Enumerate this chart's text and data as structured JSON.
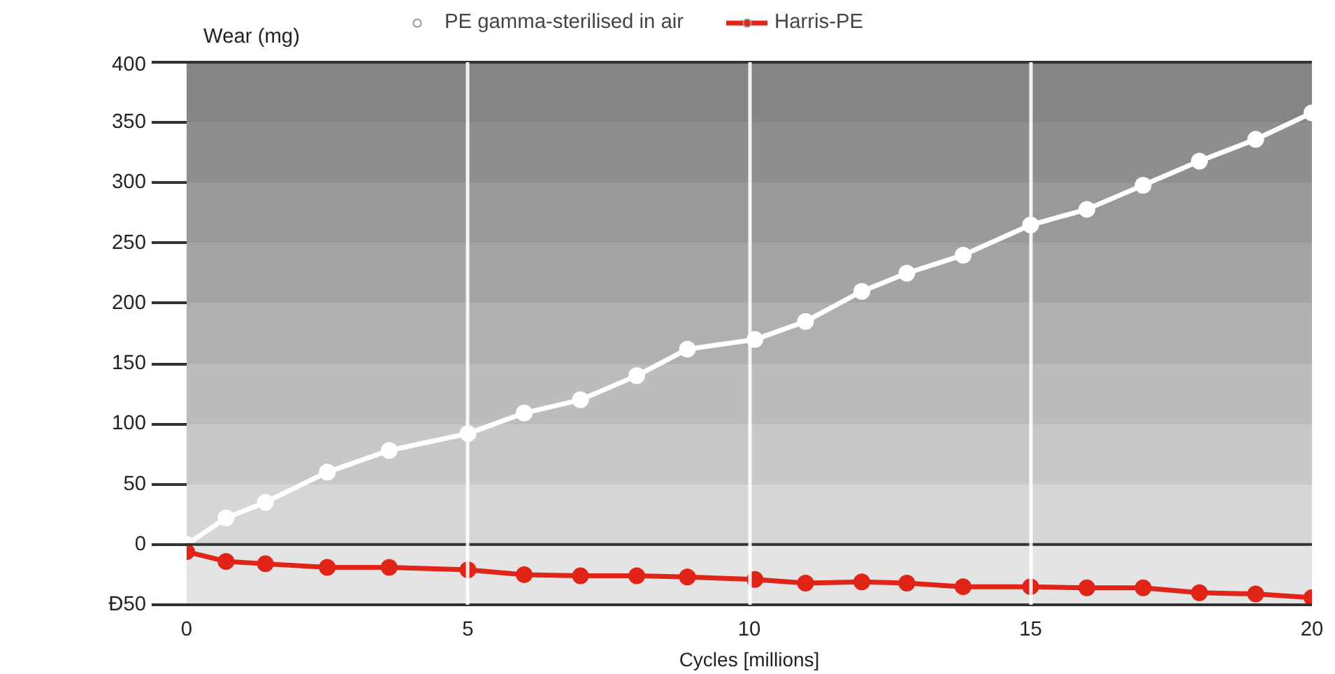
{
  "chart_data": {
    "type": "line",
    "xlabel": "Cycles [millions]",
    "ylabel": "Wear (mg)",
    "x": [
      0,
      0.7,
      1.4,
      2.5,
      3.6,
      5,
      6,
      7,
      8,
      8.9,
      10.1,
      11,
      12,
      12.8,
      13.8,
      15,
      16,
      17,
      18,
      19,
      20
    ],
    "series": [
      {
        "name": "PE gamma-sterilised in air",
        "color": "#ffffff",
        "values": [
          0,
          22,
          35,
          60,
          78,
          92,
          109,
          120,
          140,
          162,
          170,
          185,
          210,
          225,
          240,
          265,
          278,
          298,
          318,
          336,
          358
        ]
      },
      {
        "name": "Harris-PE",
        "color": "#e02418",
        "values": [
          -6,
          -14,
          -16,
          -19,
          -19,
          -21,
          -25,
          -26,
          -26,
          -27,
          -29,
          -32,
          -31,
          -32,
          -35,
          -35,
          -36,
          -36,
          -40,
          -41,
          -44
        ]
      }
    ],
    "xlim": [
      0,
      20
    ],
    "xticks": [
      0,
      5,
      10,
      15,
      20
    ],
    "ylim": [
      -50,
      400
    ],
    "yticks": [
      {
        "value": -50,
        "label": "Ð50"
      },
      0,
      50,
      100,
      150,
      200,
      250,
      300,
      350,
      400
    ],
    "bands": [
      {
        "axis": "y",
        "from": -50,
        "to": 0,
        "color": "#e4e4e4"
      },
      {
        "axis": "y",
        "from": 0,
        "to": 50,
        "color": "#d6d6d6"
      },
      {
        "axis": "y",
        "from": 50,
        "to": 100,
        "color": "#c8c8c8"
      },
      {
        "axis": "y",
        "from": 100,
        "to": 150,
        "color": "#bcbcbc"
      },
      {
        "axis": "y",
        "from": 150,
        "to": 200,
        "color": "#b0b0b0"
      },
      {
        "axis": "y",
        "from": 200,
        "to": 250,
        "color": "#a4a4a4"
      },
      {
        "axis": "y",
        "from": 250,
        "to": 300,
        "color": "#999999"
      },
      {
        "axis": "y",
        "from": 300,
        "to": 350,
        "color": "#8f8f8f"
      },
      {
        "axis": "y",
        "from": 350,
        "to": 400,
        "color": "#858585"
      }
    ],
    "ref_lines": [
      {
        "axis": "y",
        "value": 0,
        "color": "#333333"
      }
    ],
    "grid": "x",
    "legend": "top",
    "marker": "circle",
    "line_style": "solid"
  }
}
